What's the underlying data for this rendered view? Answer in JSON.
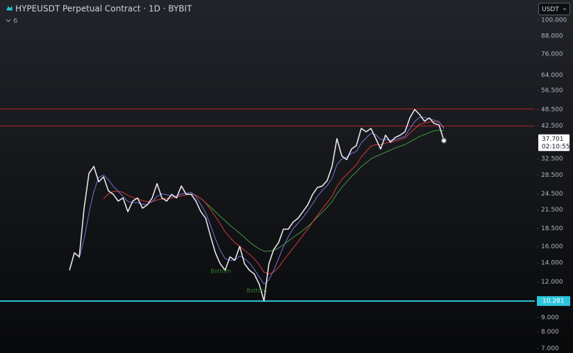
{
  "chart_data": {
    "type": "line",
    "title": "HYPEUSDT Perpetual Contract · 1D · BYBIT",
    "indicator_count": "6",
    "currency": "USDT",
    "log_scale": true,
    "x": [
      0,
      1,
      2,
      3,
      4,
      5,
      6,
      7,
      8,
      9,
      10,
      11,
      12,
      13,
      14,
      15,
      16,
      17,
      18,
      19,
      20,
      21,
      22,
      23,
      24,
      25,
      26,
      27,
      28,
      29,
      30,
      31,
      32,
      33,
      34,
      35,
      36,
      37,
      38,
      39,
      40,
      41,
      42,
      43,
      44,
      45,
      46,
      47,
      48,
      49,
      50,
      51,
      52,
      53,
      54,
      55,
      56,
      57,
      58,
      59,
      60,
      61,
      62,
      63,
      64,
      65,
      66,
      67,
      68,
      69,
      70,
      71,
      72,
      73,
      74,
      75,
      76,
      77
    ],
    "xlim": [
      -14.3,
      95.7
    ],
    "ylim": [
      6.75,
      117.7
    ],
    "yticks": [
      {
        "value": 100,
        "label": "100.000"
      },
      {
        "value": 88,
        "label": "88.000"
      },
      {
        "value": 76,
        "label": "76.000"
      },
      {
        "value": 64,
        "label": "64.000"
      },
      {
        "value": 56.5,
        "label": "56.500"
      },
      {
        "value": 48.5,
        "label": "48.500"
      },
      {
        "value": 42.5,
        "label": "42.500"
      },
      {
        "value": 32.5,
        "label": "32.500"
      },
      {
        "value": 28.5,
        "label": "28.500"
      },
      {
        "value": 24.5,
        "label": "24.500"
      },
      {
        "value": 21.5,
        "label": "21.500"
      },
      {
        "value": 18.5,
        "label": "18.500"
      },
      {
        "value": 16,
        "label": "16.000"
      },
      {
        "value": 14,
        "label": "14.000"
      },
      {
        "value": 12,
        "label": "12.000"
      },
      {
        "value": 9,
        "label": "9.000"
      },
      {
        "value": 8,
        "label": "8.000"
      },
      {
        "value": 7,
        "label": "7.000"
      }
    ],
    "series": [
      {
        "color": "#3f9b3f",
        "values": [
          null,
          null,
          null,
          null,
          null,
          null,
          null,
          null,
          null,
          null,
          null,
          null,
          null,
          null,
          null,
          null,
          null,
          null,
          null,
          null,
          null,
          null,
          null,
          null,
          null,
          24.5,
          24.2,
          23.6,
          22.8,
          22,
          21.2,
          20.4,
          19.7,
          19,
          18.4,
          17.8,
          17.2,
          16.6,
          16.1,
          15.7,
          15.4,
          15.4,
          15.5,
          15.8,
          16.2,
          16.7,
          17.2,
          17.7,
          18.2,
          18.8,
          19.5,
          20.3,
          21.1,
          22,
          23,
          24.5,
          25.8,
          27,
          28.2,
          29.3,
          30.5,
          31.5,
          32.5,
          33.2,
          33.7,
          34.3,
          34.9,
          35.5,
          36,
          36.5,
          37.3,
          38.2,
          39,
          39.6,
          40.2,
          40.8,
          41,
          40.8
        ]
      },
      {
        "color": "#d63a3a",
        "values": [
          null,
          null,
          null,
          null,
          null,
          null,
          null,
          23.5,
          24.5,
          25,
          25,
          24.8,
          24.2,
          23.8,
          23.5,
          23.2,
          23,
          23,
          23.3,
          23.5,
          23.6,
          23.7,
          23.8,
          24.1,
          24.3,
          24.4,
          24.2,
          23.6,
          22.8,
          21.6,
          20.4,
          19.2,
          18,
          17.2,
          16.5,
          16,
          15.5,
          15,
          14.5,
          13.8,
          13,
          12.8,
          13,
          13.5,
          14.3,
          15,
          15.8,
          16.6,
          17.5,
          18.4,
          19.5,
          20.6,
          21.7,
          22.8,
          24,
          26,
          27.5,
          28.6,
          29.8,
          31,
          33,
          34.5,
          36,
          36.5,
          36.5,
          37,
          37.2,
          37.5,
          38,
          38.5,
          40,
          41.5,
          43,
          43.5,
          43.8,
          44,
          43.8,
          42
        ]
      },
      {
        "color": "#7b6fd8",
        "values": [
          null,
          null,
          14.5,
          17,
          21,
          25,
          28,
          28.5,
          27.5,
          26,
          25,
          24,
          23,
          22.8,
          22.8,
          22.5,
          22.5,
          23,
          24,
          24.5,
          24.3,
          24,
          24,
          24.5,
          24.6,
          24.8,
          24,
          22.5,
          21,
          19,
          17,
          15.5,
          14.5,
          14.3,
          14.3,
          14.8,
          14.5,
          14,
          13.3,
          12.5,
          11.8,
          12.2,
          13.2,
          14.5,
          16,
          17.3,
          18.5,
          19.3,
          20.2,
          21.3,
          22.6,
          24,
          25.2,
          26.2,
          27.8,
          31,
          32.5,
          33,
          34,
          34.5,
          37,
          38.5,
          40,
          39.5,
          38,
          38,
          37.8,
          38,
          38.5,
          39,
          41.5,
          44,
          45.5,
          45.5,
          45,
          44.5,
          44,
          41.5
        ]
      },
      {
        "color": "#e8e8ec",
        "values": [
          13.2,
          15.2,
          14.7,
          21.8,
          28.9,
          30.6,
          27,
          28.1,
          25.1,
          24.4,
          23.1,
          23.7,
          21.2,
          23.1,
          23.7,
          21.8,
          22.4,
          23.7,
          26.6,
          23.7,
          23.1,
          24.4,
          23.7,
          26.1,
          24.4,
          24.4,
          23.1,
          21.2,
          20.1,
          17.4,
          15.2,
          13.9,
          13.2,
          14.7,
          14.3,
          16,
          13.9,
          13.2,
          12.8,
          11.8,
          10.3,
          13.9,
          15.6,
          16.5,
          18.4,
          18.4,
          19.5,
          20.1,
          21.2,
          22.4,
          24.4,
          25.8,
          26.1,
          27.3,
          30.6,
          38.3,
          33.3,
          32.3,
          35.2,
          36.2,
          41.6,
          40.5,
          41.6,
          38.3,
          35.2,
          39.4,
          37.2,
          38.7,
          39.4,
          40.5,
          45.3,
          48.5,
          46.6,
          44.1,
          45.3,
          43.3,
          42.8,
          37.7
        ]
      }
    ],
    "horizontal_lines": [
      {
        "value": 48.7,
        "color": "#b8262c"
      },
      {
        "value": 42.4,
        "color": "#b8262c"
      },
      {
        "value": 10.281,
        "label": "10.281",
        "color": "#2ec4dc"
      }
    ],
    "last_price": {
      "value": 37.701,
      "label": "37.701"
    },
    "countdown": "02:10:55",
    "annotations": [
      {
        "text": "Bottom",
        "x": 29,
        "y": 13.1,
        "color": "#2f7d32"
      },
      {
        "text": "Bottom",
        "x": 36.4,
        "y": 11.2,
        "color": "#2f7d32"
      }
    ]
  }
}
